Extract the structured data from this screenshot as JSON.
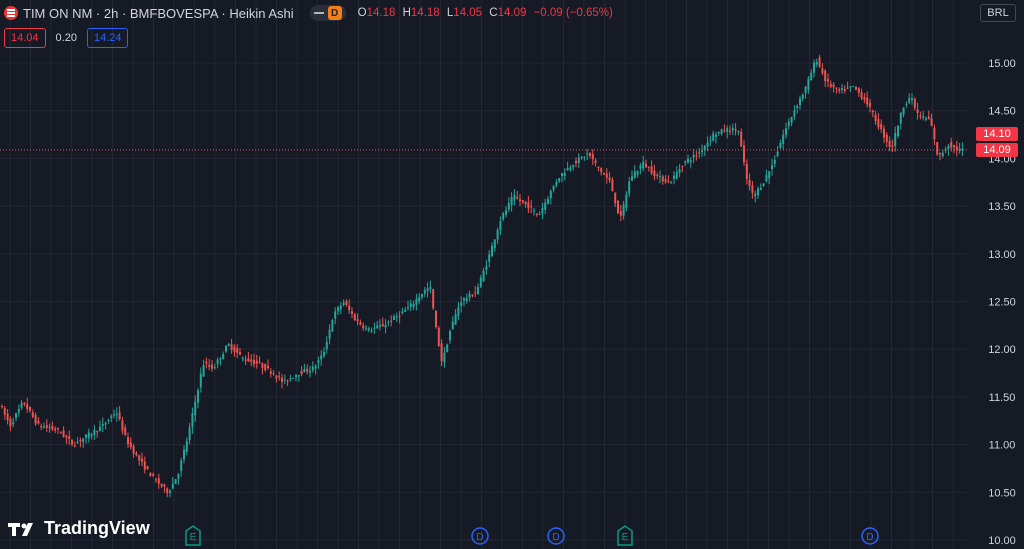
{
  "header": {
    "symbol_title": "TIM ON NM · 2h · BMFBOVESPA · Heikin Ashi",
    "market_badge": "D",
    "ohlc": {
      "o_label": "O",
      "o": "14.18",
      "h_label": "H",
      "h": "14.18",
      "l_label": "L",
      "l": "14.05",
      "c_label": "C",
      "c": "14.09",
      "change": "−0.09 (−0.65%)"
    }
  },
  "indicator": {
    "left": "14.04",
    "mid": "0.20",
    "right": "14.24"
  },
  "currency": "BRL",
  "price_tags": {
    "upper": "14.10",
    "lower": "14.09"
  },
  "brand": {
    "name": "TradingView"
  },
  "colors": {
    "up": "#26a69a",
    "down": "#ef5350",
    "background": "#161a25",
    "grid": "#232734",
    "event_dividend": "#2962ff",
    "event_earnings": "#089981"
  },
  "icons": {
    "logo": "tim-logo-icon",
    "tv_logo": "tradingview-logo-icon"
  },
  "chart_data": {
    "type": "candlestick",
    "style": "Heikin Ashi",
    "yaxis": {
      "ticks": [
        "15.00",
        "14.50",
        "14.00",
        "13.50",
        "13.00",
        "12.50",
        "12.00",
        "11.50",
        "11.00",
        "10.50",
        "10.00"
      ],
      "min": 10.0,
      "max": 15.0
    },
    "last_price": 14.09,
    "price_path": [
      [
        0,
        11.45
      ],
      [
        12,
        11.2
      ],
      [
        25,
        11.45
      ],
      [
        40,
        11.2
      ],
      [
        60,
        11.15
      ],
      [
        75,
        11.0
      ],
      [
        90,
        11.1
      ],
      [
        105,
        11.2
      ],
      [
        118,
        11.35
      ],
      [
        128,
        11.05
      ],
      [
        140,
        10.85
      ],
      [
        155,
        10.65
      ],
      [
        170,
        10.5
      ],
      [
        180,
        10.7
      ],
      [
        190,
        11.1
      ],
      [
        198,
        11.5
      ],
      [
        205,
        11.85
      ],
      [
        215,
        11.8
      ],
      [
        230,
        12.05
      ],
      [
        245,
        11.9
      ],
      [
        260,
        11.85
      ],
      [
        275,
        11.75
      ],
      [
        285,
        11.65
      ],
      [
        300,
        11.75
      ],
      [
        315,
        11.8
      ],
      [
        325,
        11.95
      ],
      [
        335,
        12.35
      ],
      [
        345,
        12.5
      ],
      [
        358,
        12.3
      ],
      [
        370,
        12.2
      ],
      [
        385,
        12.25
      ],
      [
        400,
        12.35
      ],
      [
        412,
        12.45
      ],
      [
        425,
        12.6
      ],
      [
        432,
        12.65
      ],
      [
        438,
        12.2
      ],
      [
        444,
        11.85
      ],
      [
        452,
        12.2
      ],
      [
        462,
        12.5
      ],
      [
        478,
        12.6
      ],
      [
        490,
        12.95
      ],
      [
        502,
        13.35
      ],
      [
        515,
        13.6
      ],
      [
        530,
        13.5
      ],
      [
        540,
        13.4
      ],
      [
        550,
        13.6
      ],
      [
        560,
        13.8
      ],
      [
        575,
        13.95
      ],
      [
        590,
        14.05
      ],
      [
        600,
        13.9
      ],
      [
        612,
        13.75
      ],
      [
        622,
        13.35
      ],
      [
        632,
        13.8
      ],
      [
        645,
        13.95
      ],
      [
        660,
        13.8
      ],
      [
        672,
        13.75
      ],
      [
        685,
        13.95
      ],
      [
        700,
        14.05
      ],
      [
        715,
        14.25
      ],
      [
        728,
        14.3
      ],
      [
        740,
        14.3
      ],
      [
        748,
        13.8
      ],
      [
        755,
        13.6
      ],
      [
        765,
        13.75
      ],
      [
        775,
        13.95
      ],
      [
        785,
        14.25
      ],
      [
        798,
        14.55
      ],
      [
        808,
        14.75
      ],
      [
        818,
        15.05
      ],
      [
        828,
        14.8
      ],
      [
        840,
        14.7
      ],
      [
        855,
        14.75
      ],
      [
        868,
        14.6
      ],
      [
        880,
        14.35
      ],
      [
        893,
        14.1
      ],
      [
        905,
        14.55
      ],
      [
        912,
        14.65
      ],
      [
        920,
        14.45
      ],
      [
        932,
        14.4
      ],
      [
        940,
        14.0
      ],
      [
        950,
        14.15
      ],
      [
        958,
        14.1
      ],
      [
        963,
        14.09
      ]
    ],
    "events": [
      {
        "label": "E",
        "kind": "earnings",
        "x": 193
      },
      {
        "label": "D",
        "kind": "dividend",
        "x": 480
      },
      {
        "label": "D",
        "kind": "dividend",
        "x": 556
      },
      {
        "label": "E",
        "kind": "earnings",
        "x": 625
      },
      {
        "label": "D",
        "kind": "dividend",
        "x": 870
      }
    ]
  }
}
